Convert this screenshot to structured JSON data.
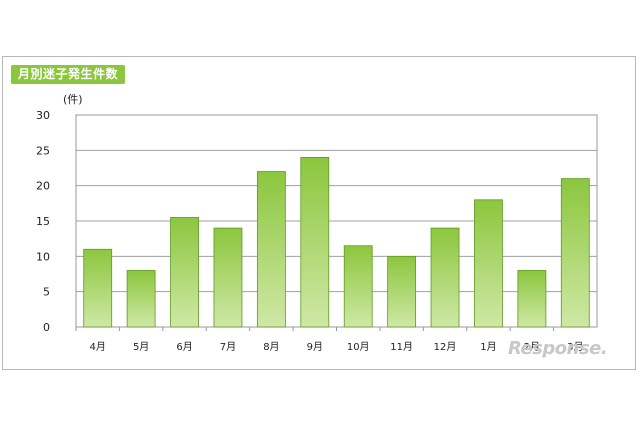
{
  "chart_data": {
    "type": "bar",
    "title": "月別迷子発生件数",
    "unit_label": "(件)",
    "categories": [
      "4月",
      "5月",
      "6月",
      "7月",
      "8月",
      "9月",
      "10月",
      "11月",
      "12月",
      "1月",
      "2月",
      "3月"
    ],
    "values": [
      11,
      8,
      15.5,
      14,
      22,
      24,
      11.5,
      10,
      14,
      18,
      8,
      21
    ],
    "ylim": [
      0,
      30
    ],
    "yticks": [
      0,
      5,
      10,
      15,
      20,
      25,
      30
    ],
    "grid": true,
    "bar_color": "#8cc63e",
    "bar_color_light": "#cfe8a6"
  },
  "watermark": "Response."
}
